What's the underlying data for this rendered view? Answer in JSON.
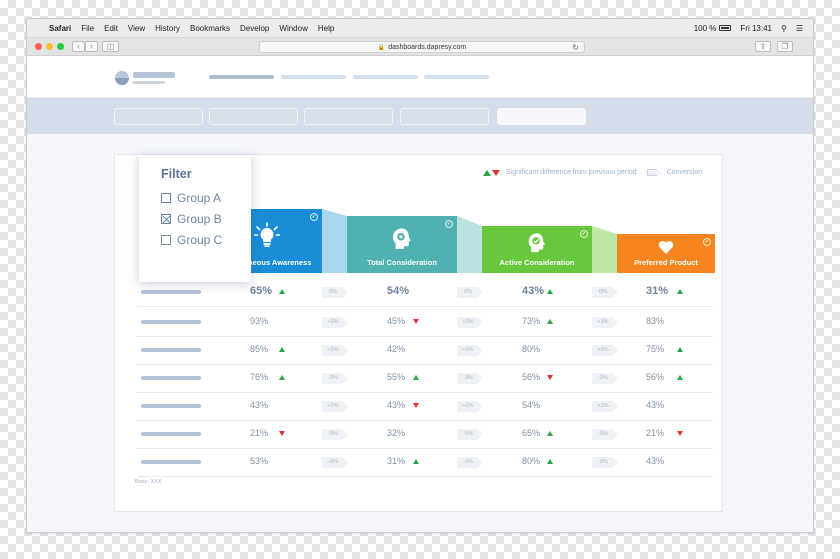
{
  "menubar": {
    "app": "Safari",
    "items": [
      "File",
      "Edit",
      "View",
      "History",
      "Bookmarks",
      "Develop",
      "Window",
      "Help"
    ],
    "battery": "100 %",
    "clock": "Fri 13:41"
  },
  "browser": {
    "url": "dashboards.dapresy.com",
    "nav_back": "‹",
    "nav_forward": "›"
  },
  "legend": {
    "significant": "Significant difference from previous period",
    "conversion": "Conversion"
  },
  "filter": {
    "title": "Filter",
    "options": [
      {
        "label": "Group A",
        "checked": false
      },
      {
        "label": "Group B",
        "checked": true
      },
      {
        "label": "Group C",
        "checked": false
      }
    ]
  },
  "stages": [
    {
      "name": "Spontaneous Awareness",
      "color": "#1a8dd6",
      "icon": "lightbulb-icon"
    },
    {
      "name": "Total Consideration",
      "color": "#4fb2b1",
      "icon": "head-gear-icon"
    },
    {
      "name": "Active Consideration",
      "color": "#68c83c",
      "icon": "head-check-icon"
    },
    {
      "name": "Preferred Product",
      "color": "#f7851f",
      "icon": "heart-icon"
    }
  ],
  "connector_colors": [
    "#a9d6ef",
    "#b9e2e1",
    "#bfe7a6"
  ],
  "rows": [
    {
      "values": [
        "65%",
        "54%",
        "43%",
        "31%"
      ],
      "ind": [
        "up",
        "",
        "up",
        "up"
      ],
      "deltas": [
        "0%",
        "0%",
        "0%"
      ],
      "bold": true
    },
    {
      "values": [
        "93%",
        "45%",
        "73%",
        "83%"
      ],
      "ind": [
        "",
        "down",
        "up",
        ""
      ],
      "deltas": [
        "+3%",
        "+3%",
        "+3%"
      ],
      "bold": false
    },
    {
      "values": [
        "85%",
        "42%",
        "80%",
        "75%"
      ],
      "ind": [
        "up",
        "",
        "",
        "up"
      ],
      "deltas": [
        "+5%",
        "+5%",
        "+5%"
      ],
      "bold": false
    },
    {
      "values": [
        "76%",
        "55%",
        "56%",
        "56%"
      ],
      "ind": [
        "up",
        "up",
        "down",
        "up"
      ],
      "deltas": [
        "-3%",
        "-3%",
        "-3%"
      ],
      "bold": false
    },
    {
      "values": [
        "43%",
        "43%",
        "54%",
        "43%"
      ],
      "ind": [
        "",
        "down",
        "",
        ""
      ],
      "deltas": [
        "+2%",
        "+2%",
        "+2%"
      ],
      "bold": false
    },
    {
      "values": [
        "21%",
        "32%",
        "65%",
        "21%"
      ],
      "ind": [
        "down",
        "",
        "up",
        "down"
      ],
      "deltas": [
        "-5%",
        "-5%",
        "-5%"
      ],
      "bold": false
    },
    {
      "values": [
        "53%",
        "31%",
        "80%",
        "43%"
      ],
      "ind": [
        "",
        "up",
        "up",
        ""
      ],
      "deltas": [
        "-0%",
        "-0%",
        "-0%"
      ],
      "bold": false
    }
  ],
  "base_note": "Base: XXX"
}
